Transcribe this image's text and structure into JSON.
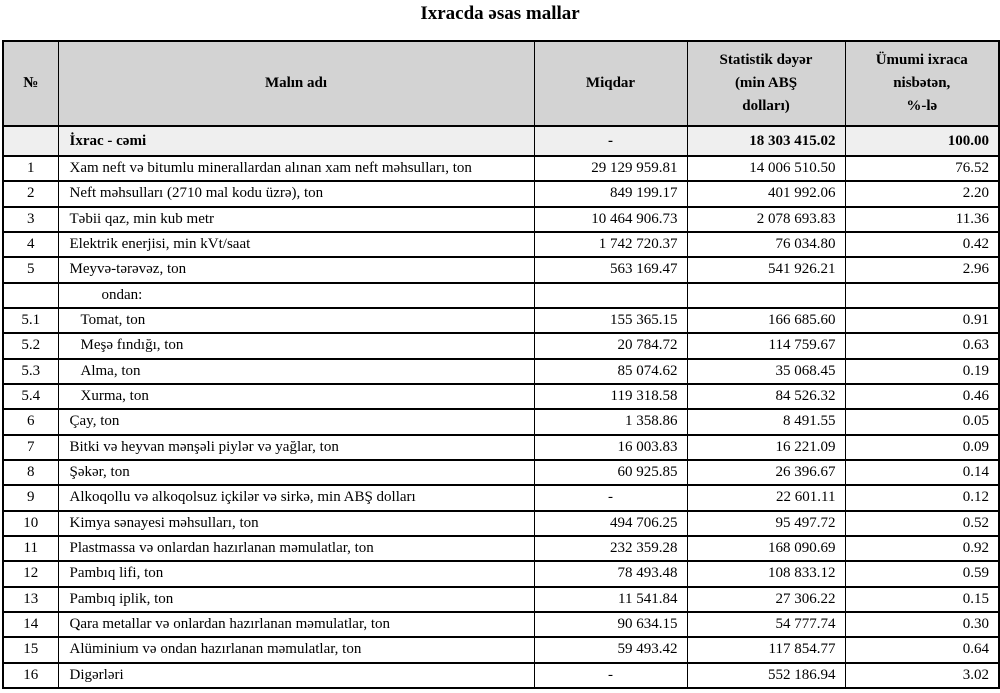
{
  "title": "Ixracda əsas mallar",
  "table": {
    "headers": {
      "no": "№",
      "name": "Malın adı",
      "quantity": "Miqdar",
      "value": "Statistik dəyər\n(min ABŞ\ndolları)",
      "share": "Ümumi ixraca\nnisbətən,\n%-lə"
    },
    "summary_row": {
      "no": "",
      "name": "İxrac - cəmi",
      "quantity": "-",
      "value": "18 303 415.02",
      "share": "100.00"
    },
    "rows": [
      {
        "no": "1",
        "name": "Xam neft və bitumlu minerallardan alınan xam neft məhsulları, ton",
        "quantity": "29 129 959.81",
        "value": "14 006 510.50",
        "share": "76.52",
        "style": "normal"
      },
      {
        "no": "2",
        "name": "Neft məhsulları (2710 mal kodu üzrə), ton",
        "quantity": "849 199.17",
        "value": "401 992.06",
        "share": "2.20",
        "style": "normal"
      },
      {
        "no": "3",
        "name": "Təbii qaz, min kub metr",
        "quantity": "10 464 906.73",
        "value": "2 078 693.83",
        "share": "11.36",
        "style": "normal"
      },
      {
        "no": "4",
        "name": "Elektrik enerjisi, min kVt/saat",
        "quantity": "1 742 720.37",
        "value": "76 034.80",
        "share": "0.42",
        "style": "normal"
      },
      {
        "no": "5",
        "name": "Meyvə-tərəvəz, ton",
        "quantity": "563 169.47",
        "value": "541 926.21",
        "share": "2.96",
        "style": "normal"
      },
      {
        "no": "",
        "name": "ondan:",
        "quantity": "",
        "value": "",
        "share": "",
        "style": "note"
      },
      {
        "no": "5.1",
        "name": "Tomat, ton",
        "quantity": "155 365.15",
        "value": "166 685.60",
        "share": "0.91",
        "style": "sub"
      },
      {
        "no": "5.2",
        "name": "Meşə fındığı, ton",
        "quantity": "20 784.72",
        "value": "114 759.67",
        "share": "0.63",
        "style": "sub"
      },
      {
        "no": "5.3",
        "name": "Alma, ton",
        "quantity": "85 074.62",
        "value": "35 068.45",
        "share": "0.19",
        "style": "sub"
      },
      {
        "no": "5.4",
        "name": "Xurma, ton",
        "quantity": "119 318.58",
        "value": "84 526.32",
        "share": "0.46",
        "style": "sub"
      },
      {
        "no": "6",
        "name": "Çay, ton",
        "quantity": "1 358.86",
        "value": "8 491.55",
        "share": "0.05",
        "style": "normal"
      },
      {
        "no": "7",
        "name": "Bitki və heyvan mənşəli piylər və yağlar, ton",
        "quantity": "16 003.83",
        "value": "16 221.09",
        "share": "0.09",
        "style": "normal"
      },
      {
        "no": "8",
        "name": "Şəkər, ton",
        "quantity": "60 925.85",
        "value": "26 396.67",
        "share": "0.14",
        "style": "normal"
      },
      {
        "no": "9",
        "name": "Alkoqollu və alkoqolsuz içkilər və sirkə, min ABŞ dolları",
        "quantity": "-",
        "value": "22 601.11",
        "share": "0.12",
        "style": "normal"
      },
      {
        "no": "10",
        "name": "Kimya sənayesi məhsulları, ton",
        "quantity": "494 706.25",
        "value": "95 497.72",
        "share": "0.52",
        "style": "normal"
      },
      {
        "no": "11",
        "name": "Plastmassa və onlardan hazırlanan məmulatlar, ton",
        "quantity": "232 359.28",
        "value": "168 090.69",
        "share": "0.92",
        "style": "normal"
      },
      {
        "no": "12",
        "name": "Pambıq lifi, ton",
        "quantity": "78 493.48",
        "value": "108 833.12",
        "share": "0.59",
        "style": "normal"
      },
      {
        "no": "13",
        "name": "Pambıq iplik, ton",
        "quantity": "11 541.84",
        "value": "27 306.22",
        "share": "0.15",
        "style": "normal"
      },
      {
        "no": "14",
        "name": "Qara metallar və onlardan hazırlanan məmulatlar, ton",
        "quantity": "90 634.15",
        "value": "54 777.74",
        "share": "0.30",
        "style": "normal"
      },
      {
        "no": "15",
        "name": "Alüminium və ondan hazırlanan məmulatlar, ton",
        "quantity": "59 493.42",
        "value": "117 854.77",
        "share": "0.64",
        "style": "normal"
      },
      {
        "no": "16",
        "name": "Digərləri",
        "quantity": "-",
        "value": "552 186.94",
        "share": "3.02",
        "style": "normal"
      }
    ],
    "colors": {
      "header_bg": "#d3d3d3",
      "summary_bg": "#efefef",
      "border": "#000000",
      "text": "#000000"
    }
  }
}
